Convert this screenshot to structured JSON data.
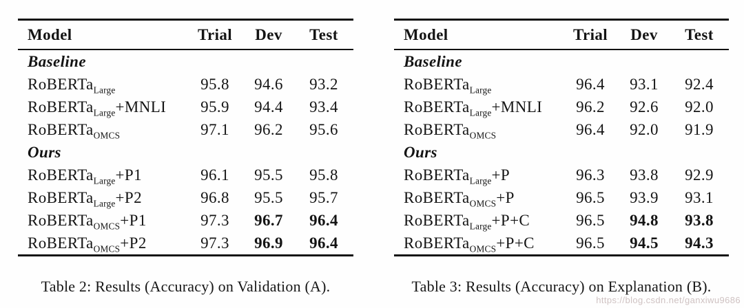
{
  "page": {
    "background_color": "#fefefe",
    "text_color": "#141414",
    "rule_color": "#101010",
    "watermark_color": "#cfc2c2"
  },
  "watermark": {
    "text": "https://blog.csdn.net/ganxiwu9686"
  },
  "tables": [
    {
      "caption": "Table 2: Results (Accuracy) on Validation (A).",
      "columns": [
        "Model",
        "Trial",
        "Dev",
        "Test"
      ],
      "sections": [
        {
          "label": "Baseline",
          "rows": [
            {
              "model": {
                "base": "RoBERTa",
                "sub": "Large",
                "suffix": ""
              },
              "trial": "95.8",
              "dev": "94.6",
              "test": "93.2"
            },
            {
              "model": {
                "base": "RoBERTa",
                "sub": "Large",
                "suffix": "+MNLI"
              },
              "trial": "95.9",
              "dev": "94.4",
              "test": "93.4"
            },
            {
              "model": {
                "base": "RoBERTa",
                "sub": "OMCS",
                "suffix": ""
              },
              "trial": "97.1",
              "dev": "96.2",
              "test": "95.6"
            }
          ]
        },
        {
          "label": "Ours",
          "rows": [
            {
              "model": {
                "base": "RoBERTa",
                "sub": "Large",
                "suffix": "+P1"
              },
              "trial": "96.1",
              "dev": "95.5",
              "test": "95.8"
            },
            {
              "model": {
                "base": "RoBERTa",
                "sub": "Large",
                "suffix": "+P2"
              },
              "trial": "96.8",
              "dev": "95.5",
              "test": "95.7"
            },
            {
              "model": {
                "base": "RoBERTa",
                "sub": "OMCS",
                "suffix": "+P1"
              },
              "trial": "97.3",
              "dev": "96.7",
              "test": "96.4"
            },
            {
              "model": {
                "base": "RoBERTa",
                "sub": "OMCS",
                "suffix": "+P2"
              },
              "trial": "97.3",
              "dev": "96.9",
              "test": "96.4"
            }
          ]
        }
      ]
    },
    {
      "caption": "Table 3: Results (Accuracy) on Explanation (B).",
      "columns": [
        "Model",
        "Trial",
        "Dev",
        "Test"
      ],
      "sections": [
        {
          "label": "Baseline",
          "rows": [
            {
              "model": {
                "base": "RoBERTa",
                "sub": "Large",
                "suffix": ""
              },
              "trial": "96.4",
              "dev": "93.1",
              "test": "92.4"
            },
            {
              "model": {
                "base": "RoBERTa",
                "sub": "Large",
                "suffix": "+MNLI"
              },
              "trial": "96.2",
              "dev": "92.6",
              "test": "92.0"
            },
            {
              "model": {
                "base": "RoBERTa",
                "sub": "OMCS",
                "suffix": ""
              },
              "trial": "96.4",
              "dev": "92.0",
              "test": "91.9"
            }
          ]
        },
        {
          "label": "Ours",
          "rows": [
            {
              "model": {
                "base": "RoBERTa",
                "sub": "Large",
                "suffix": "+P"
              },
              "trial": "96.3",
              "dev": "93.8",
              "test": "92.9"
            },
            {
              "model": {
                "base": "RoBERTa",
                "sub": "OMCS",
                "suffix": "+P"
              },
              "trial": "96.5",
              "dev": "93.9",
              "test": "93.1"
            },
            {
              "model": {
                "base": "RoBERTa",
                "sub": "Large",
                "suffix": "+P+C"
              },
              "trial": "96.5",
              "dev": "94.8",
              "test": "93.8"
            },
            {
              "model": {
                "base": "RoBERTa",
                "sub": "OMCS",
                "suffix": "+P+C"
              },
              "trial": "96.5",
              "dev": "94.5",
              "test": "94.3"
            }
          ]
        }
      ]
    }
  ]
}
